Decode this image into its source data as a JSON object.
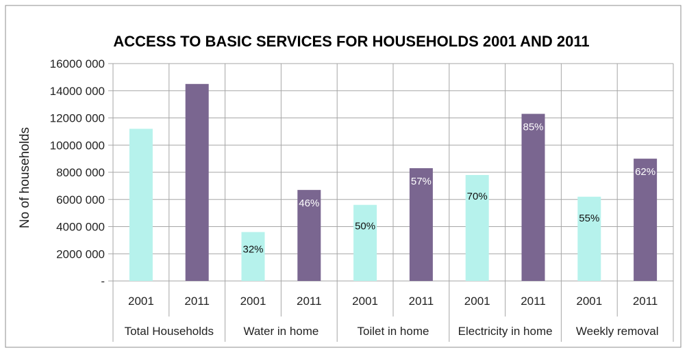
{
  "chart_data": {
    "type": "bar",
    "title": "ACCESS TO BASIC SERVICES FOR HOUSEHOLDS 2001 AND 2011",
    "ylabel": "No of households",
    "ylim": [
      0,
      16000000
    ],
    "yticks": [
      {
        "value": 0,
        "label": "-"
      },
      {
        "value": 2000000,
        "label": "2000 000"
      },
      {
        "value": 4000000,
        "label": "4000 000"
      },
      {
        "value": 6000000,
        "label": "6000 000"
      },
      {
        "value": 8000000,
        "label": "8000 000"
      },
      {
        "value": 10000000,
        "label": "10000 000"
      },
      {
        "value": 12000000,
        "label": "12000 000"
      },
      {
        "value": 14000000,
        "label": "14000 000"
      },
      {
        "value": 16000000,
        "label": "16000 000"
      }
    ],
    "grid": true,
    "groups": [
      "Total Households",
      "Water in home",
      "Toilet in home",
      "Electricity in home",
      "Weekly removal"
    ],
    "series": [
      {
        "name": "2001",
        "color": "#b6f2ec",
        "values": [
          11200000,
          3600000,
          5600000,
          7800000,
          6200000
        ],
        "labels": [
          "",
          "32%",
          "50%",
          "70%",
          "55%"
        ]
      },
      {
        "name": "2011",
        "color": "#7a6690",
        "values": [
          14500000,
          6700000,
          8300000,
          12300000,
          9000000
        ],
        "labels": [
          "",
          "46%",
          "57%",
          "85%",
          "62%"
        ]
      }
    ]
  },
  "colors": {
    "grid": "#a6a6a6",
    "frame": "#8c8c8c",
    "label_on_light": "#111111",
    "label_on_dark": "#ffffff"
  }
}
